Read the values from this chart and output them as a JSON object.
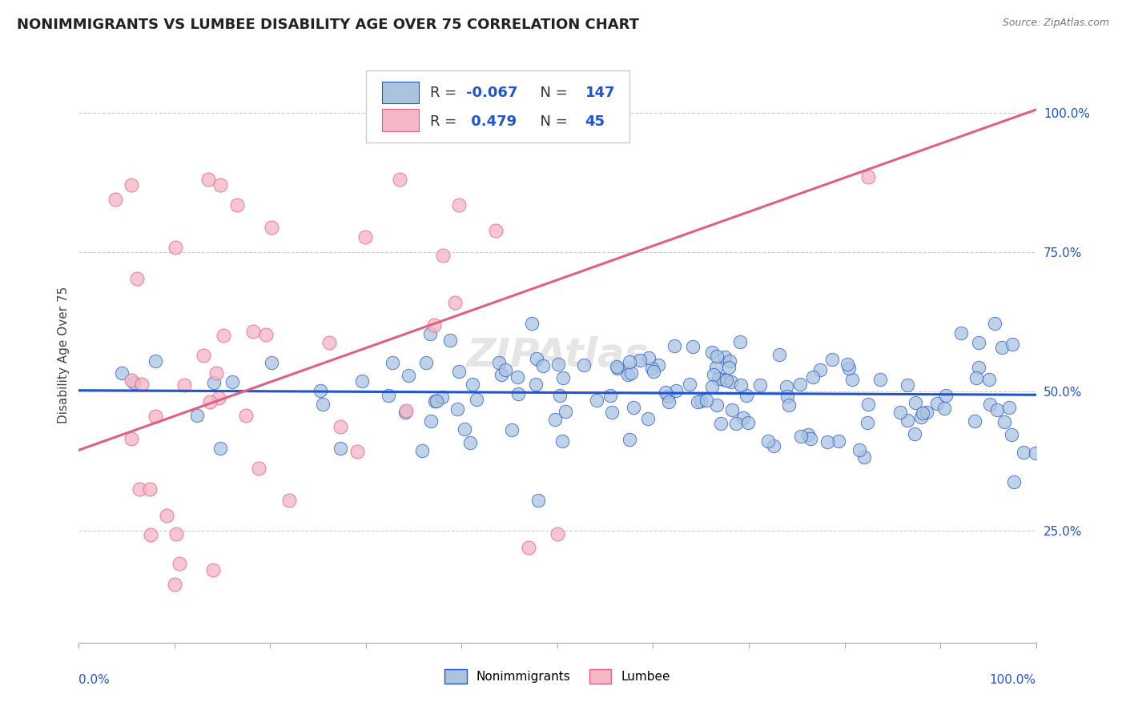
{
  "title": "NONIMMIGRANTS VS LUMBEE DISABILITY AGE OVER 75 CORRELATION CHART",
  "source": "Source: ZipAtlas.com",
  "ylabel": "Disability Age Over 75",
  "ytick_labels": [
    "25.0%",
    "50.0%",
    "75.0%",
    "100.0%"
  ],
  "ytick_values": [
    0.25,
    0.5,
    0.75,
    1.0
  ],
  "xlim": [
    0.0,
    1.0
  ],
  "ylim": [
    0.05,
    1.08
  ],
  "legend_blue_label": "Nonimmigrants",
  "legend_pink_label": "Lumbee",
  "R_blue": -0.067,
  "N_blue": 147,
  "R_pink": 0.479,
  "N_pink": 45,
  "blue_color": "#aac4e0",
  "pink_color": "#f4b8c8",
  "blue_line_color": "#2255cc",
  "pink_line_color": "#e06080",
  "background_color": "#ffffff",
  "watermark_text": "ZIPAtlas",
  "title_fontsize": 13,
  "axis_label_fontsize": 11,
  "tick_fontsize": 11,
  "blue_line_y0": 0.502,
  "blue_line_y1": 0.494,
  "pink_line_y0": 0.395,
  "pink_line_y1": 1.005
}
